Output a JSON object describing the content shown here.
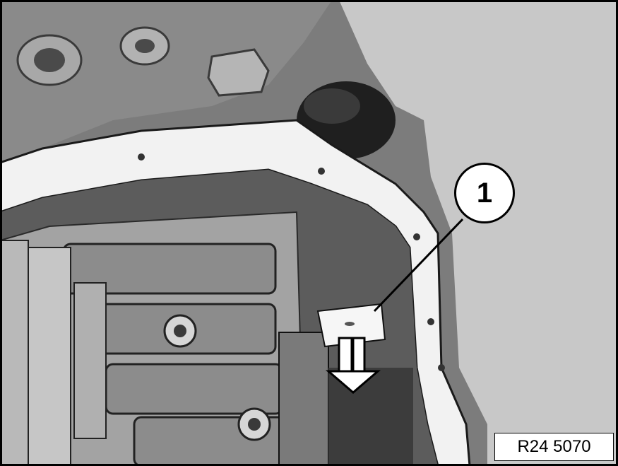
{
  "figure": {
    "callout_number": "1",
    "reference_code": "R24 5070"
  },
  "colors": {
    "background": "#c9c9c9",
    "metal_dark": "#6e6e6e",
    "metal_mid": "#9a9a9a",
    "metal_light": "#d8d8d8",
    "gasket": "#f2f2f2",
    "outline": "#000000"
  },
  "icons": {
    "arrow": "down-arrow-icon",
    "callout": "callout-circle-icon"
  }
}
